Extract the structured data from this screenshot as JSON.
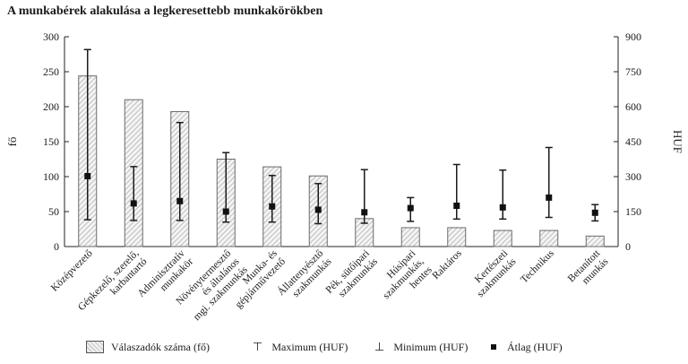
{
  "chart_data": {
    "type": "bar",
    "title": "A munkabérek alakulása a legkeresettebb munkakörökben",
    "ylabel": "fő",
    "y2label": "HUF",
    "ylim": [
      0,
      300
    ],
    "y2lim": [
      0,
      900
    ],
    "yticks": [
      "0",
      "50",
      "100",
      "150",
      "200",
      "250",
      "300"
    ],
    "y2ticks": [
      "0",
      "150",
      "300",
      "450",
      "600",
      "750",
      "900"
    ],
    "categories": [
      [
        "Középvezető"
      ],
      [
        "Gépkezelő, szerelő,",
        "karbantartó"
      ],
      [
        "Adminisztratív",
        "munkakör"
      ],
      [
        "Növénytermesztő",
        "és általános",
        "mgi. szakmunkás"
      ],
      [
        "Munka- és",
        "gépjárművezető"
      ],
      [
        "Állattenyésztő",
        "szakmunkás"
      ],
      [
        "Pék, sütőipari",
        "szakmunkás"
      ],
      [
        "Húsipari",
        "szakmunkás,",
        "hentes"
      ],
      [
        "Raktáros"
      ],
      [
        "Kertészeti",
        "szakmunkás"
      ],
      [
        "Technikus"
      ],
      [
        "Betanított",
        "munkás"
      ]
    ],
    "series": [
      {
        "name": "Válaszadók száma (fő)",
        "axis": "left",
        "values": [
          244,
          210,
          193,
          125,
          114,
          101,
          40,
          27,
          27,
          23,
          23,
          15
        ]
      },
      {
        "name": "Maximum (HUF)",
        "axis": "right",
        "values": [
          845,
          343,
          532,
          403,
          305,
          270,
          330,
          210,
          352,
          328,
          425,
          180
        ]
      },
      {
        "name": "Minimum (HUF)",
        "axis": "right",
        "values": [
          115,
          112,
          112,
          105,
          105,
          98,
          100,
          108,
          118,
          118,
          125,
          110
        ]
      },
      {
        "name": "Átlag (HUF)",
        "axis": "right",
        "values": [
          302,
          185,
          195,
          150,
          172,
          158,
          147,
          165,
          175,
          168,
          210,
          145
        ]
      }
    ],
    "grid": false,
    "legend_position": "bottom"
  },
  "legend": {
    "items": [
      {
        "label": "Válaszadók száma (fő)",
        "symbol": ""
      },
      {
        "label": "Maximum (HUF)",
        "symbol": "⊤"
      },
      {
        "label": "Minimum (HUF)",
        "symbol": "⊥"
      },
      {
        "label": "Átlag (HUF)",
        "symbol": ""
      }
    ]
  },
  "colors": {
    "bar_stroke": "#6b6b6b",
    "bar_hatch_dark": "#bdbdbd",
    "bar_hatch_light": "#f4f4f4",
    "error_line": "#1a1a1a",
    "marker": "#111111"
  }
}
